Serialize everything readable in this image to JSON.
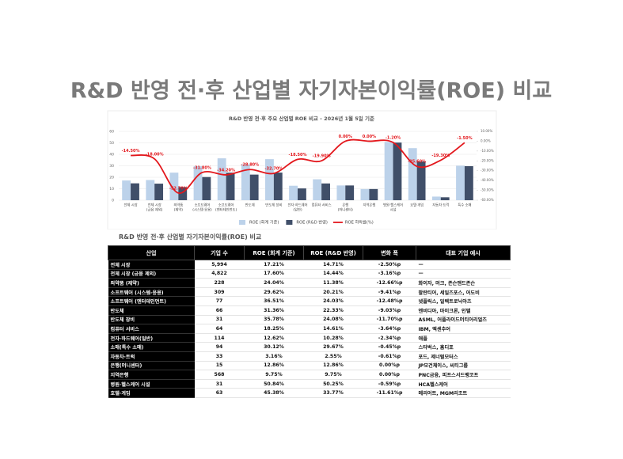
{
  "header": {
    "title": "R&D 반영 전·후 산업별 자기자본이익률(ROE) 비교"
  },
  "chart_data": {
    "type": "bar_line",
    "title": "R&D 반영 전·후 주요 산업별 ROE 비교 - 2026년 1월 5일 기준",
    "categories": [
      [
        "전체 시장"
      ],
      [
        "전체 시장",
        "(금융 제외)"
      ],
      [
        "의약품",
        "(제약)"
      ],
      [
        "소프트웨어",
        "(시스템·응용)"
      ],
      [
        "소프트웨어",
        "(엔터테인먼트)"
      ],
      [
        "반도체"
      ],
      [
        "반도체 장비"
      ],
      [
        "전자·하드웨어",
        "(일반)"
      ],
      [
        "컴퓨터 서비스"
      ],
      [
        "은행",
        "(머니센터)"
      ],
      [
        "지역은행"
      ],
      [
        "병원·헬스케어",
        "시설"
      ],
      [
        "호텔·게임"
      ],
      [
        "자동차·트럭"
      ],
      [
        "특수 소매"
      ]
    ],
    "series": [
      {
        "name": "ROE (회계 기준)",
        "color": "#bcd2ea",
        "values": [
          17.21,
          17.6,
          24.04,
          29.62,
          36.51,
          31.36,
          35.78,
          12.62,
          18.25,
          12.86,
          9.75,
          50.84,
          45.38,
          3.16,
          30.12
        ]
      },
      {
        "name": "ROE (R&D 반영)",
        "color": "#404f69",
        "values": [
          14.71,
          14.44,
          11.38,
          20.21,
          24.03,
          22.33,
          24.08,
          10.28,
          14.61,
          12.86,
          9.75,
          50.25,
          33.77,
          2.55,
          29.67
        ]
      },
      {
        "name": "ROE 하락률(%)",
        "color": "#e3171c",
        "axis": "y2",
        "values": [
          -14.5,
          -18.0,
          -52.7,
          -31.8,
          -34.2,
          -28.8,
          -32.7,
          -18.5,
          -19.9,
          0.0,
          0.0,
          -1.2,
          -25.6,
          -19.3,
          -1.5
        ],
        "value_labels": [
          "-14.50%",
          "-18.00%",
          "-52.70%",
          "-31.80%",
          "-34.20%",
          "-28.80%",
          "-32.70%",
          "-18.50%",
          "-19.90%",
          "0.00%",
          "0.00%",
          "-1.20%",
          "-25.60%",
          "-19.30%",
          "-1.50%"
        ]
      }
    ],
    "ylim": [
      0,
      60
    ],
    "yticks": [
      0,
      10,
      20,
      30,
      40,
      50,
      60
    ],
    "y2lim": [
      -60,
      10
    ],
    "y2ticks": [
      {
        "value": 10,
        "label": "10.00%"
      },
      {
        "value": 0,
        "label": "0.00%"
      },
      {
        "value": -10,
        "label": "-10.00%"
      },
      {
        "value": -20,
        "label": "-20.00%"
      },
      {
        "value": -30,
        "label": "-30.00%"
      },
      {
        "value": -40,
        "label": "-40.00%"
      },
      {
        "value": -50,
        "label": "-50.00%"
      },
      {
        "value": -60,
        "label": "-60.00%"
      }
    ],
    "grid": true,
    "legend": "bottom"
  },
  "table": {
    "title": "R&D 반영 전·후 산업별 자기자본이익률(ROE) 비교",
    "columns": [
      "산업",
      "기업 수",
      "ROE (회계 기준)",
      "ROE (R&D 반영)",
      "변화 폭",
      "대표 기업 예시"
    ],
    "rows": [
      [
        "전체 시장",
        "5,994",
        "17.21%",
        "14.71%",
        "-2.50%p",
        "—"
      ],
      [
        "전체 시장 (금융 제외)",
        "4,822",
        "17.60%",
        "14.44%",
        "-3.16%p",
        "—"
      ],
      [
        "의약품 (제약)",
        "228",
        "24.04%",
        "11.38%",
        "-12.66%p",
        "화이자, 머크, 존슨앤드존슨"
      ],
      [
        "소프트웨어 (시스템·응용)",
        "309",
        "29.62%",
        "20.21%",
        "-9.41%p",
        "팔란티어, 세일즈포스, 어도비"
      ],
      [
        "소프트웨어 (엔터테인먼트)",
        "77",
        "36.51%",
        "24.03%",
        "-12.48%p",
        "넷플릭스, 일렉트로닉아츠"
      ],
      [
        "반도체",
        "66",
        "31.36%",
        "22.33%",
        "-9.03%p",
        "엔비디아, 마이크론, 인텔"
      ],
      [
        "반도체 장비",
        "31",
        "35.78%",
        "24.08%",
        "-11.70%p",
        "ASML, 어플라이드머티어리얼즈"
      ],
      [
        "컴퓨터 서비스",
        "64",
        "18.25%",
        "14.61%",
        "-3.64%p",
        "IBM, 액센추어"
      ],
      [
        "전자·하드웨어(일반)",
        "114",
        "12.62%",
        "10.28%",
        "-2.34%p",
        "애플"
      ],
      [
        "소매(특수 소매)",
        "94",
        "30.12%",
        "29.67%",
        "-0.45%p",
        "스타벅스, 홈디포"
      ],
      [
        "자동차·트럭",
        "33",
        "3.16%",
        "2.55%",
        "-0.61%p",
        "포드, 제너럴모터스"
      ],
      [
        "은행(머니센터)",
        "15",
        "12.86%",
        "12.86%",
        "0.00%p",
        "JP모건체이스, 씨티그룹"
      ],
      [
        "지역은행",
        "568",
        "9.75%",
        "9.75%",
        "0.00%p",
        "PNC금융, 피프스서드뱅코프"
      ],
      [
        "병원·헬스케어 시설",
        "31",
        "50.84%",
        "50.25%",
        "-0.59%p",
        "HCA헬스케어"
      ],
      [
        "호텔·게임",
        "63",
        "45.38%",
        "33.77%",
        "-11.61%p",
        "메리어트, MGM리조트"
      ]
    ]
  }
}
